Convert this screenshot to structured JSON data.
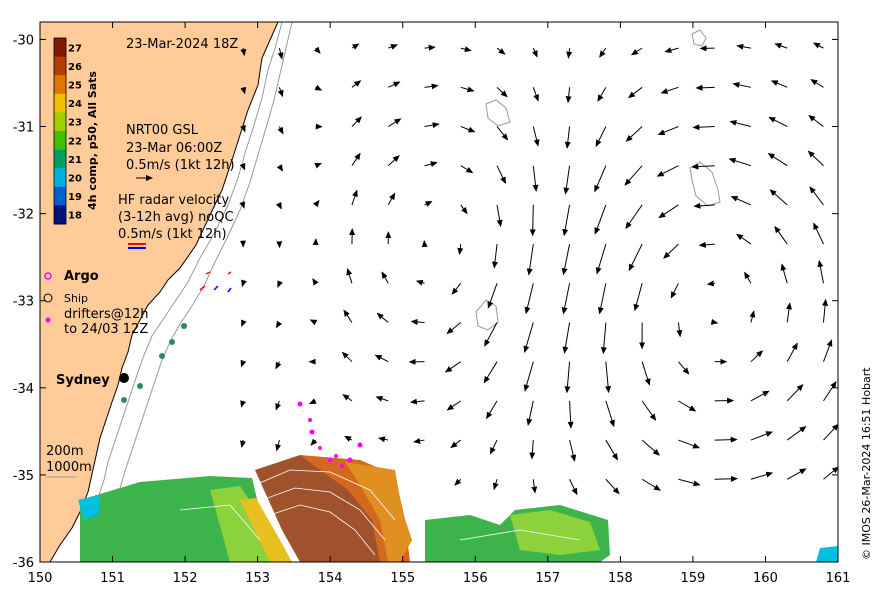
{
  "map": {
    "timestamp": "23-Mar-2024 18Z",
    "credit": "© IMOS 26-Mar-2024 16:51 Hobart",
    "lon_range": [
      150,
      161
    ],
    "lat_range": [
      -36,
      -29.8
    ],
    "x_ticks": [
      "150",
      "151",
      "152",
      "153",
      "154",
      "155",
      "156",
      "157",
      "158",
      "159",
      "160",
      "161"
    ],
    "y_ticks": [
      "-30",
      "-31",
      "-32",
      "-33",
      "-34",
      "-35",
      "-36"
    ],
    "colors": {
      "land": "#FFCC99",
      "coast": "#000000",
      "isobath": "#999999",
      "argo": "#FF00FF",
      "drifter": "#FF00FF",
      "radar_red": "#FF0000",
      "radar_blue": "#0000FF"
    }
  },
  "colorbar": {
    "title": "4h comp, p50, All Sats",
    "labels": [
      "27",
      "26",
      "25",
      "24",
      "23",
      "22",
      "21",
      "20",
      "19",
      "18"
    ],
    "colors": [
      "#7F1A00",
      "#B34000",
      "#E07800",
      "#F0C000",
      "#A0D000",
      "#40C000",
      "#00A060",
      "#00B0E0",
      "#0060D0",
      "#001080"
    ]
  },
  "legend": {
    "current_title": "NRT00 GSL",
    "current_time": "23-Mar 06:00Z",
    "current_scale": "0.5m/s (1kt 12h)",
    "radar_title": "HF radar velocity",
    "radar_avg": "(3-12h avg) noQC",
    "radar_scale": "0.5m/s (1kt 12h)",
    "argo": "Argo",
    "ship": "Ship",
    "drifters": "drifters@12h",
    "drifters_to": "to 24/03 12Z",
    "isobath_200": "200m",
    "isobath_1000": "1000m",
    "city": "Sydney"
  }
}
